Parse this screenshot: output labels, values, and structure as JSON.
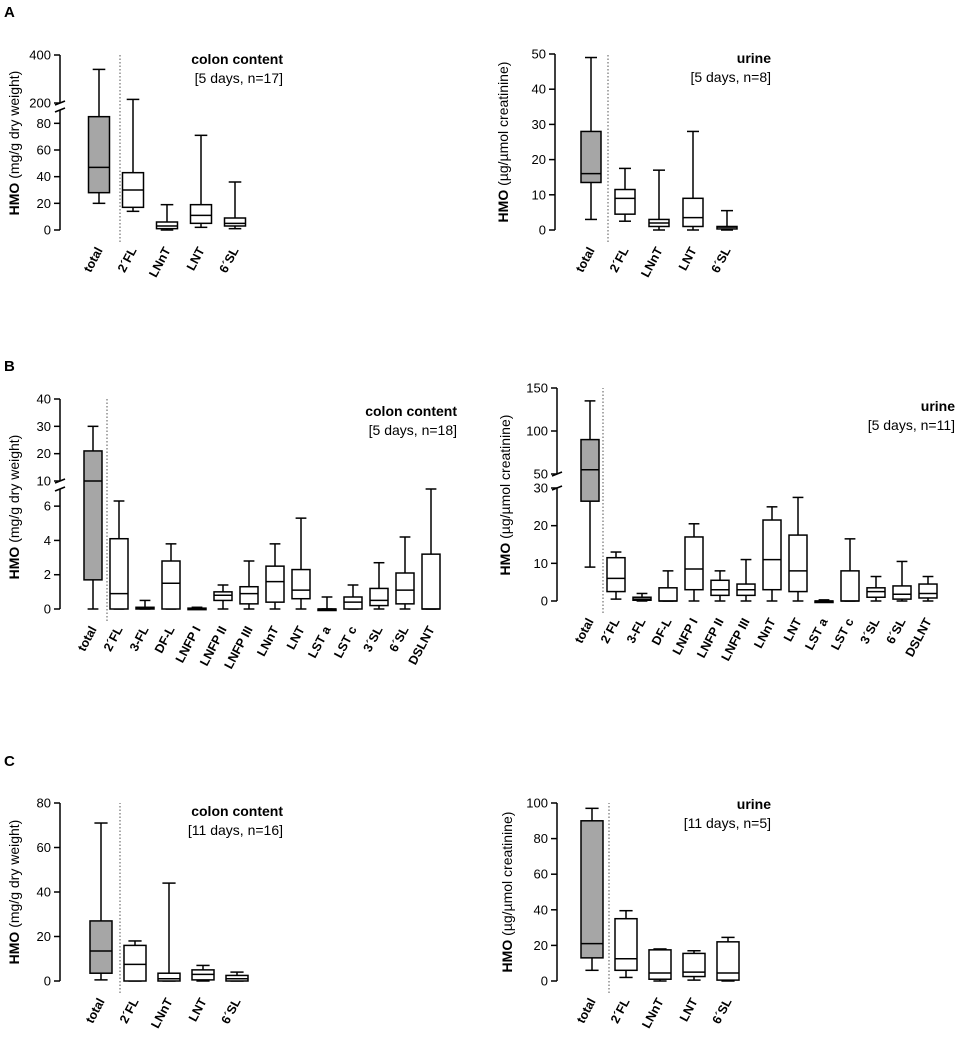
{
  "chart_data": [
    {
      "type": "box",
      "panel": "A",
      "title": "colon content",
      "subtitle": "[5 days, n=17]",
      "ylabel_bold": "HMO",
      "ylabel_rest": " (mg/g dry weight)",
      "ylim": [
        0,
        400
      ],
      "axis_break": {
        "lower": [
          0,
          90
        ],
        "upper": [
          200,
          400
        ]
      },
      "y_ticks": [
        0,
        20,
        40,
        60,
        80,
        200,
        400
      ],
      "categories": [
        "total",
        "2´FL",
        "LNnT",
        "LNT",
        "6´SL"
      ],
      "boxes": [
        {
          "min": 20,
          "q1": 28,
          "median": 47,
          "q3": 85,
          "max": 340,
          "fill": "#a6a6a6"
        },
        {
          "min": 14,
          "q1": 17,
          "median": 30,
          "q3": 43,
          "max": 215,
          "fill": "#ffffff"
        },
        {
          "min": 0,
          "q1": 1,
          "median": 3,
          "q3": 6,
          "max": 19,
          "fill": "#ffffff"
        },
        {
          "min": 2,
          "q1": 5,
          "median": 11,
          "q3": 19,
          "max": 71,
          "fill": "#ffffff"
        },
        {
          "min": 1,
          "q1": 3,
          "median": 5,
          "q3": 9,
          "max": 36,
          "fill": "#ffffff"
        }
      ]
    },
    {
      "type": "box",
      "panel": "A",
      "title": "urine",
      "subtitle": "[5 days, n=8]",
      "ylabel_bold": "HMO",
      "ylabel_rest": " (µg/µmol creatinine)",
      "ylim": [
        0,
        50
      ],
      "y_ticks": [
        0,
        10,
        20,
        30,
        40,
        50
      ],
      "categories": [
        "total",
        "2´FL",
        "LNnT",
        "LNT",
        "6´SL"
      ],
      "boxes": [
        {
          "min": 3,
          "q1": 13.5,
          "median": 16,
          "q3": 28,
          "max": 49,
          "fill": "#a6a6a6"
        },
        {
          "min": 2.5,
          "q1": 4.5,
          "median": 9,
          "q3": 11.5,
          "max": 17.5,
          "fill": "#ffffff"
        },
        {
          "min": 0,
          "q1": 1,
          "median": 2,
          "q3": 3,
          "max": 17,
          "fill": "#ffffff"
        },
        {
          "min": 0,
          "q1": 1,
          "median": 3.5,
          "q3": 9,
          "max": 28,
          "fill": "#ffffff"
        },
        {
          "min": 0,
          "q1": 0.3,
          "median": 0.8,
          "q3": 1,
          "max": 5.5,
          "fill": "#ffffff"
        }
      ]
    },
    {
      "type": "box",
      "panel": "B",
      "title": "colon content",
      "subtitle": "[5 days, n=18]",
      "ylabel_bold": "HMO",
      "ylabel_rest": " (mg/g dry weight)",
      "ylim": [
        0,
        40
      ],
      "axis_break": {
        "lower": [
          0,
          7
        ],
        "upper": [
          10,
          40
        ]
      },
      "y_ticks": [
        0,
        2,
        4,
        6,
        10,
        20,
        30,
        40
      ],
      "categories": [
        "total",
        "2´FL",
        "3-FL",
        "DF-L",
        "LNFP I",
        "LNFP II",
        "LNFP III",
        "LNnT",
        "LNT",
        "LST a",
        "LST c",
        "3´SL",
        "6´SL",
        "DSLNT"
      ],
      "boxes": [
        {
          "min": 0,
          "q1": 1.7,
          "median": 10,
          "q3": 21,
          "max": 30,
          "fill": "#a6a6a6"
        },
        {
          "min": 0,
          "q1": 0,
          "median": 0.9,
          "q3": 4.1,
          "max": 6.3,
          "fill": "#ffffff"
        },
        {
          "min": 0,
          "q1": 0,
          "median": 0.05,
          "q3": 0.1,
          "max": 0.5,
          "fill": "#ffffff"
        },
        {
          "min": 0,
          "q1": 0,
          "median": 1.5,
          "q3": 2.8,
          "max": 3.8,
          "fill": "#ffffff"
        },
        {
          "min": 0,
          "q1": 0,
          "median": 0.02,
          "q3": 0.05,
          "max": 0.1,
          "fill": "#ffffff"
        },
        {
          "min": 0,
          "q1": 0.5,
          "median": 0.8,
          "q3": 1.0,
          "max": 1.4,
          "fill": "#ffffff"
        },
        {
          "min": 0,
          "q1": 0.3,
          "median": 0.9,
          "q3": 1.3,
          "max": 2.8,
          "fill": "#ffffff"
        },
        {
          "min": 0,
          "q1": 0.4,
          "median": 1.6,
          "q3": 2.5,
          "max": 3.8,
          "fill": "#ffffff"
        },
        {
          "min": 0,
          "q1": 0.6,
          "median": 1.1,
          "q3": 2.3,
          "max": 5.3,
          "fill": "#ffffff"
        },
        {
          "min": 0,
          "q1": 0,
          "median": 0,
          "q3": 0,
          "max": 0.7,
          "fill": "#ffffff"
        },
        {
          "min": 0,
          "q1": 0,
          "median": 0.4,
          "q3": 0.7,
          "max": 1.4,
          "fill": "#ffffff"
        },
        {
          "min": 0,
          "q1": 0.2,
          "median": 0.5,
          "q3": 1.2,
          "max": 2.7,
          "fill": "#ffffff"
        },
        {
          "min": 0,
          "q1": 0.3,
          "median": 1.1,
          "q3": 2.1,
          "max": 4.2,
          "fill": "#ffffff"
        },
        {
          "min": 0,
          "q1": 0,
          "median": 0,
          "q3": 3.2,
          "max": 7,
          "fill": "#ffffff"
        }
      ]
    },
    {
      "type": "box",
      "panel": "B",
      "title": "urine",
      "subtitle": "[5 days, n=11]",
      "ylabel_bold": "HMO",
      "ylabel_rest": " (µg/µmol creatinine)",
      "ylim": [
        0,
        150
      ],
      "axis_break": {
        "lower": [
          0,
          30
        ],
        "upper": [
          50,
          150
        ]
      },
      "y_ticks": [
        0,
        10,
        20,
        30,
        50,
        100,
        150
      ],
      "categories": [
        "total",
        "2´FL",
        "3-FL",
        "DF-L",
        "LNFP I",
        "LNFP II",
        "LNFP III",
        "LNnT",
        "LNT",
        "LST a",
        "LST c",
        "3´SL",
        "6´SL",
        "DSLNT"
      ],
      "boxes": [
        {
          "min": 9,
          "q1": 26.5,
          "median": 55,
          "q3": 90,
          "max": 135,
          "fill": "#a6a6a6"
        },
        {
          "min": 0.5,
          "q1": 2.5,
          "median": 6,
          "q3": 11.5,
          "max": 13,
          "fill": "#ffffff"
        },
        {
          "min": 0,
          "q1": 0.2,
          "median": 0.5,
          "q3": 1,
          "max": 2,
          "fill": "#ffffff"
        },
        {
          "min": 0,
          "q1": 0,
          "median": 0,
          "q3": 3.5,
          "max": 8,
          "fill": "#ffffff"
        },
        {
          "min": 0,
          "q1": 3,
          "median": 8.5,
          "q3": 17,
          "max": 20.5,
          "fill": "#ffffff"
        },
        {
          "min": 0,
          "q1": 1.5,
          "median": 3,
          "q3": 5.5,
          "max": 8,
          "fill": "#ffffff"
        },
        {
          "min": 0,
          "q1": 1.5,
          "median": 3,
          "q3": 4.5,
          "max": 11,
          "fill": "#ffffff"
        },
        {
          "min": 0,
          "q1": 3,
          "median": 11,
          "q3": 21.5,
          "max": 25,
          "fill": "#ffffff"
        },
        {
          "min": 0,
          "q1": 2.5,
          "median": 8,
          "q3": 17.5,
          "max": 27.5,
          "fill": "#ffffff"
        },
        {
          "min": 0,
          "q1": 0,
          "median": 0,
          "q3": 0,
          "max": 0.3,
          "fill": "#ffffff"
        },
        {
          "min": 0,
          "q1": 0,
          "median": 0,
          "q3": 8,
          "max": 16.5,
          "fill": "#ffffff"
        },
        {
          "min": 0,
          "q1": 1,
          "median": 2.5,
          "q3": 3.5,
          "max": 6.5,
          "fill": "#ffffff"
        },
        {
          "min": 0,
          "q1": 0.5,
          "median": 1.8,
          "q3": 4,
          "max": 10.5,
          "fill": "#ffffff"
        },
        {
          "min": 0,
          "q1": 0.8,
          "median": 2,
          "q3": 4.5,
          "max": 6.5,
          "fill": "#ffffff"
        }
      ]
    },
    {
      "type": "box",
      "panel": "C",
      "title": "colon content",
      "subtitle": "[11 days, n=16]",
      "ylabel_bold": "HMO",
      "ylabel_rest": " (mg/g dry weight)",
      "ylim": [
        0,
        80
      ],
      "y_ticks": [
        0,
        20,
        40,
        60,
        80
      ],
      "categories": [
        "total",
        "2´FL",
        "LNnT",
        "LNT",
        "6´SL"
      ],
      "boxes": [
        {
          "min": 0.5,
          "q1": 3.5,
          "median": 13.5,
          "q3": 27,
          "max": 71,
          "fill": "#a6a6a6"
        },
        {
          "min": 0,
          "q1": 0,
          "median": 7.5,
          "q3": 16,
          "max": 18,
          "fill": "#ffffff"
        },
        {
          "min": 0,
          "q1": 0,
          "median": 1,
          "q3": 3.5,
          "max": 44,
          "fill": "#ffffff"
        },
        {
          "min": 0,
          "q1": 0.5,
          "median": 3,
          "q3": 5,
          "max": 7,
          "fill": "#ffffff"
        },
        {
          "min": 0,
          "q1": 0,
          "median": 1,
          "q3": 2.5,
          "max": 4,
          "fill": "#ffffff"
        }
      ]
    },
    {
      "type": "box",
      "panel": "C",
      "title": "urine",
      "subtitle": "[11 days, n=5]",
      "ylabel_bold": "HMO",
      "ylabel_rest": " (µg/µmol creatinine)",
      "ylim": [
        0,
        100
      ],
      "y_ticks": [
        0,
        20,
        40,
        60,
        80,
        100
      ],
      "categories": [
        "total",
        "2´FL",
        "LNnT",
        "LNT",
        "6´SL"
      ],
      "boxes": [
        {
          "min": 6,
          "q1": 13,
          "median": 21,
          "q3": 90,
          "max": 97,
          "fill": "#a6a6a6"
        },
        {
          "min": 2,
          "q1": 6,
          "median": 12.5,
          "q3": 35,
          "max": 39.5,
          "fill": "#ffffff"
        },
        {
          "min": 0,
          "q1": 1,
          "median": 4.5,
          "q3": 17.5,
          "max": 18,
          "fill": "#ffffff"
        },
        {
          "min": 0.5,
          "q1": 2.5,
          "median": 5,
          "q3": 15.5,
          "max": 17,
          "fill": "#ffffff"
        },
        {
          "min": 0,
          "q1": 0.5,
          "median": 4.5,
          "q3": 22,
          "max": 24.5,
          "fill": "#ffffff"
        }
      ]
    }
  ],
  "panel_labels": {
    "A": "A",
    "B": "B",
    "C": "C"
  }
}
